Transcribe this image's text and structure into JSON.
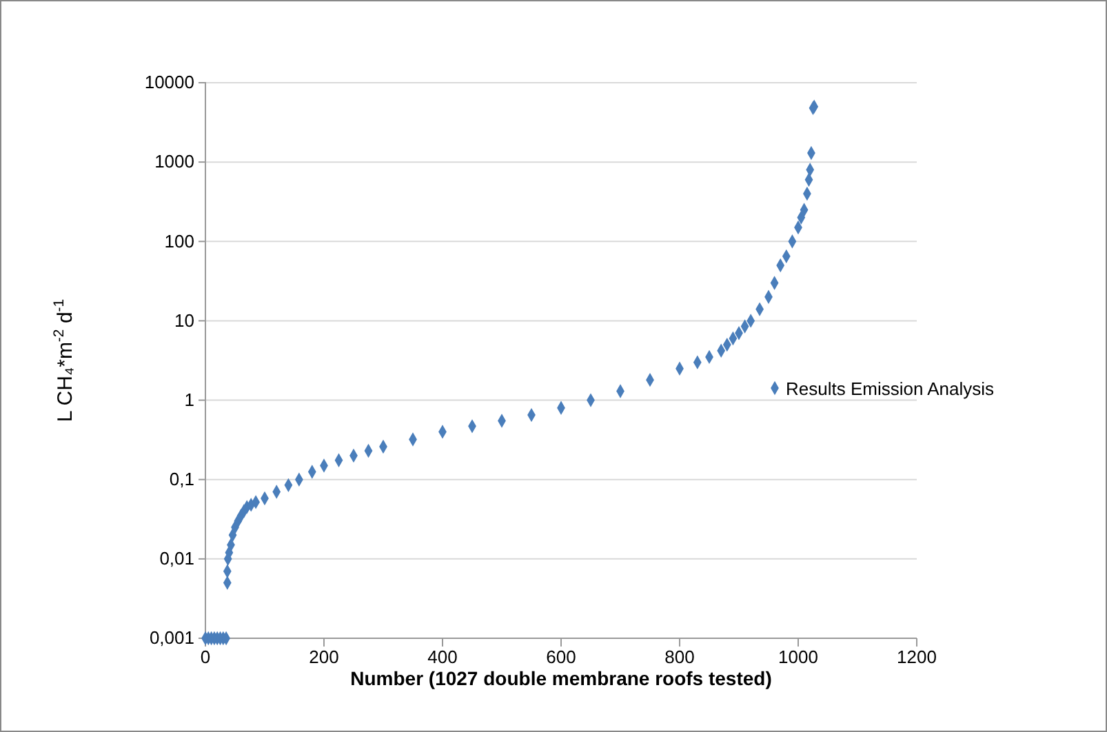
{
  "chart_data": {
    "type": "scatter",
    "xlabel": "Number  (1027 double membrane roofs tested)",
    "ylabel": "L CH₄*m$^{-2}$ d$^{-1}$",
    "log": "y",
    "grid": "y",
    "legend": "right",
    "marker": "diamond",
    "xlim": [
      0,
      1200
    ],
    "xticks": [
      0,
      200,
      400,
      600,
      800,
      1000,
      1200
    ],
    "ylim": [
      0.001,
      10000
    ],
    "yticks": [
      {
        "value": 0.001,
        "label": "0,001"
      },
      {
        "value": 0.01,
        "label": "0,01"
      },
      {
        "value": 0.1,
        "label": "0,1"
      },
      1,
      10,
      100,
      1000,
      10000
    ],
    "series": [
      {
        "name": "Results Emission Analysis",
        "color": "#4a7ebb",
        "x": [
          0,
          5,
          10,
          15,
          20,
          25,
          30,
          35,
          37,
          37,
          38,
          40,
          43,
          46,
          50,
          55,
          60,
          65,
          70,
          77,
          85,
          100,
          120,
          140,
          158,
          180,
          200,
          225,
          250,
          275,
          300,
          350,
          400,
          450,
          500,
          550,
          600,
          650,
          700,
          750,
          800,
          830,
          850,
          870,
          880,
          890,
          900,
          910,
          920,
          935,
          950,
          960,
          970,
          980,
          990,
          1000,
          1005,
          1010,
          1015,
          1018,
          1020,
          1022,
          1025,
          1027
        ],
        "values": [
          0.001,
          0.001,
          0.001,
          0.001,
          0.001,
          0.001,
          0.001,
          0.001,
          0.005,
          0.007,
          0.01,
          0.012,
          0.015,
          0.02,
          0.025,
          0.03,
          0.035,
          0.04,
          0.045,
          0.048,
          0.052,
          0.058,
          0.07,
          0.085,
          0.1,
          0.125,
          0.15,
          0.175,
          0.2,
          0.23,
          0.26,
          0.32,
          0.4,
          0.47,
          0.55,
          0.65,
          0.8,
          1,
          1.3,
          1.8,
          2.5,
          3,
          3.5,
          4.2,
          5,
          6,
          7,
          8.5,
          10,
          14,
          20,
          30,
          50,
          65,
          100,
          150,
          200,
          250,
          400,
          600,
          800,
          1300,
          4800,
          5000
        ]
      }
    ]
  }
}
